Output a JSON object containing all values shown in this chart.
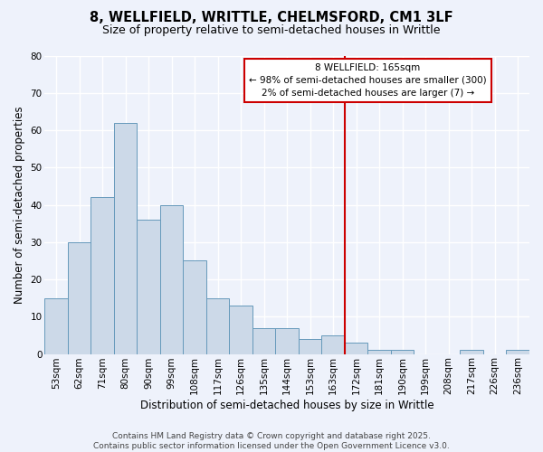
{
  "title_line1": "8, WELLFIELD, WRITTLE, CHELMSFORD, CM1 3LF",
  "title_line2": "Size of property relative to semi-detached houses in Writtle",
  "xlabel": "Distribution of semi-detached houses by size in Writtle",
  "ylabel": "Number of semi-detached properties",
  "categories": [
    "53sqm",
    "62sqm",
    "71sqm",
    "80sqm",
    "90sqm",
    "99sqm",
    "108sqm",
    "117sqm",
    "126sqm",
    "135sqm",
    "144sqm",
    "153sqm",
    "163sqm",
    "172sqm",
    "181sqm",
    "190sqm",
    "199sqm",
    "208sqm",
    "217sqm",
    "226sqm",
    "236sqm"
  ],
  "values": [
    15,
    30,
    42,
    62,
    36,
    40,
    25,
    15,
    13,
    7,
    7,
    4,
    5,
    3,
    1,
    1,
    0,
    0,
    1,
    0,
    1
  ],
  "bar_color": "#ccd9e8",
  "bar_edge_color": "#6699bb",
  "background_color": "#eef2fb",
  "grid_color": "#ffffff",
  "marker_index": 12,
  "marker_line_color": "#cc0000",
  "annotation_title": "8 WELLFIELD: 165sqm",
  "annotation_line2": "← 98% of semi-detached houses are smaller (300)",
  "annotation_line3": "2% of semi-detached houses are larger (7) →",
  "ylim": [
    0,
    80
  ],
  "yticks": [
    0,
    10,
    20,
    30,
    40,
    50,
    60,
    70,
    80
  ],
  "footer_line1": "Contains HM Land Registry data © Crown copyright and database right 2025.",
  "footer_line2": "Contains public sector information licensed under the Open Government Licence v3.0.",
  "title_fontsize": 10.5,
  "subtitle_fontsize": 9,
  "axis_label_fontsize": 8.5,
  "tick_fontsize": 7.5,
  "annotation_fontsize": 7.5,
  "footer_fontsize": 6.5
}
